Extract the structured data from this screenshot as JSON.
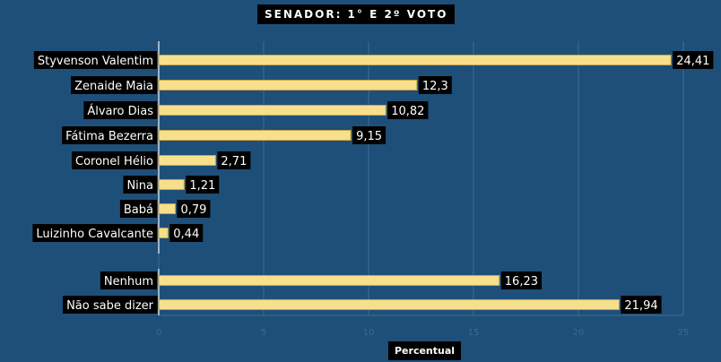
{
  "chart_data": {
    "type": "bar",
    "orientation": "horizontal",
    "title": "SENADOR: 1° E 2º VOTO",
    "xlabel": "Percentual",
    "ylabel": "",
    "xlim": [
      0,
      25
    ],
    "x_ticks": [
      "0",
      "5",
      "10",
      "15",
      "20",
      "25"
    ],
    "grid": "vertical",
    "categories": [
      "Styvenson Valentim",
      "Zenaide Maia",
      "Álvaro Dias",
      "Fátima Bezerra",
      "Coronel Hélio",
      "Nina",
      "Babá",
      "Luizinho Cavalcante",
      "Nenhum",
      "Não sabe dizer"
    ],
    "values": [
      24.41,
      12.3,
      10.82,
      9.15,
      2.71,
      1.21,
      0.79,
      0.44,
      16.23,
      21.94
    ],
    "value_labels": [
      "24,41",
      "12,3",
      "10,82",
      "9,15",
      "2,71",
      "1,21",
      "0,79",
      "0,44",
      "16,23",
      "21,94"
    ]
  },
  "colors": {
    "background": "#1e4f79",
    "bar_fill": "#f7df8c",
    "bar_stroke": "#c9a64a",
    "label_bg": "#000000",
    "label_text": "#ffffff",
    "grid": "#3d6c95",
    "axis": "#c8d6e3"
  }
}
